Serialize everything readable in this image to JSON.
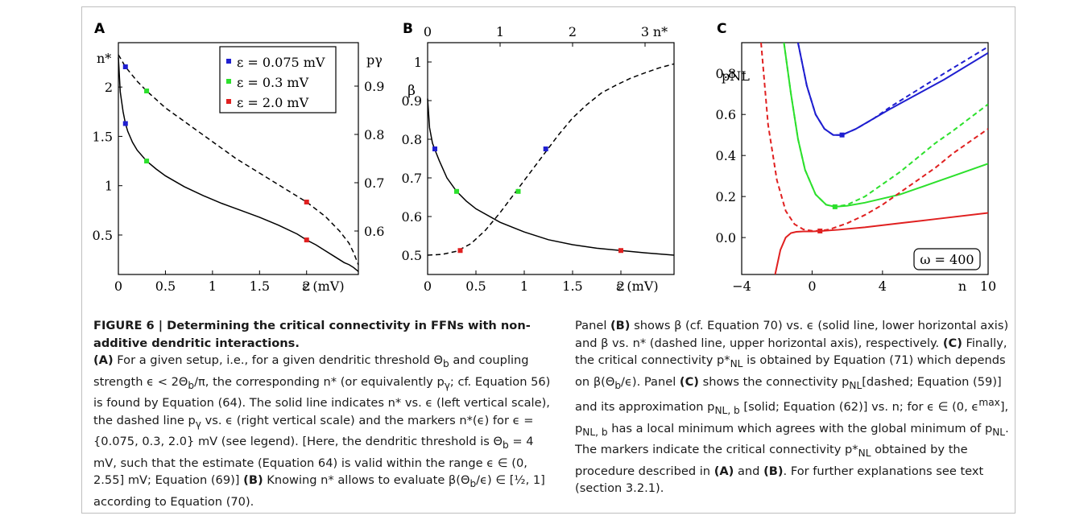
{
  "figure": {
    "panel_labels": [
      "A",
      "B",
      "C"
    ],
    "caption_title": "FIGURE 6 | Determining the critical connectivity in FFNs with non-additive dendritic interactions.",
    "caption_left_parts": [
      "(A)",
      " For a given setup, i.e., for a given dendritic threshold Θ",
      " and coupling strength ϵ < 2Θ",
      "/π, the corresponding n* (or equivalently p",
      "; cf. Equation 56) is found by Equation (64). The solid line indicates n* vs. ϵ (left vertical scale), the dashed line p",
      " vs. ϵ (right vertical scale) and the markers n*(ϵ) for ϵ = {0.075, 0.3, 2.0} mV (see legend). [Here, the dendritic threshold is Θ",
      " = 4 mV, such that the estimate (Equation 64) is valid within the range ϵ ∈ (0, 2.55] mV; Equation (69)] ",
      "(B)",
      " Knowing n* allows to evaluate β(Θ",
      "/ϵ) ∈ [½, 1] according to Equation (70)."
    ],
    "caption_right_parts": [
      "Panel ",
      "(B)",
      " shows β (cf. Equation 70) vs. ϵ (solid line, lower horizontal axis) and β vs. n* (dashed line, upper horizontal axis), respectively. ",
      "(C)",
      " Finally, the critical connectivity p*",
      " is obtained by Equation (71) which depends on β(Θ",
      "/ϵ). Panel ",
      "(C)",
      " shows the connectivity p",
      "[dashed; Equation (59)] and its approximation p",
      " [solid; Equation (62)] vs. n; for ϵ ∈ (0, ϵ",
      "], p",
      " has a local minimum which agrees with the global minimum of p",
      ". The markers indicate the critical connectivity p*",
      " obtained by the procedure described in ",
      "(A)",
      " and ",
      "(B)",
      ". For further explanations see text (section 3.2.1)."
    ],
    "subscripts": [
      "b",
      "γ",
      "NL",
      "NL, b",
      "max"
    ]
  },
  "chart_data": [
    {
      "panel": "A",
      "type": "line",
      "xlabel": "ε (mV)",
      "ylabel_left": "n*",
      "ylabel_right": "pγ",
      "xlim": [
        0,
        2.55
      ],
      "ylim_left": [
        0.1,
        2.45
      ],
      "ylim_right": [
        0.51,
        0.99
      ],
      "xticks": [
        "0",
        "0.5",
        "1",
        "1.5",
        "2"
      ],
      "yticks_left": [
        "0.5",
        "1",
        "1.5",
        "2"
      ],
      "yticks_right": [
        "0.6",
        "0.7",
        "0.8",
        "0.9"
      ],
      "legend": [
        "ε = 0.075 mV",
        "ε = 0.3 mV",
        "ε = 2.0 mV"
      ],
      "legend_position": "top-right",
      "series": [
        {
          "style": "solid",
          "axis": "left",
          "x": [
            0.0,
            0.02,
            0.05,
            0.075,
            0.1,
            0.15,
            0.2,
            0.3,
            0.4,
            0.5,
            0.7,
            0.9,
            1.1,
            1.3,
            1.5,
            1.7,
            1.9,
            2.0,
            2.1,
            2.2,
            2.3,
            2.4,
            2.45,
            2.5,
            2.55
          ],
          "y": [
            2.3,
            1.95,
            1.75,
            1.63,
            1.55,
            1.44,
            1.36,
            1.25,
            1.17,
            1.1,
            0.99,
            0.9,
            0.82,
            0.75,
            0.68,
            0.6,
            0.51,
            0.45,
            0.4,
            0.34,
            0.28,
            0.22,
            0.2,
            0.17,
            0.13
          ]
        },
        {
          "style": "dashed",
          "axis": "right",
          "x": [
            0.0,
            0.075,
            0.2,
            0.3,
            0.5,
            0.75,
            1.0,
            1.25,
            1.5,
            1.75,
            2.0,
            2.2,
            2.35,
            2.45,
            2.5,
            2.55
          ],
          "y": [
            0.965,
            0.94,
            0.91,
            0.89,
            0.855,
            0.82,
            0.785,
            0.75,
            0.72,
            0.69,
            0.66,
            0.63,
            0.6,
            0.575,
            0.555,
            0.53
          ]
        }
      ],
      "markers": [
        {
          "x": 0.075,
          "y_left": 1.63,
          "y_right": 0.94,
          "color": "#1f1fd0"
        },
        {
          "x": 0.3,
          "y_left": 1.25,
          "y_right": 0.89,
          "color": "#2ce02c"
        },
        {
          "x": 2.0,
          "y_left": 0.45,
          "y_right": 0.66,
          "color": "#e02020"
        }
      ]
    },
    {
      "panel": "B",
      "type": "line",
      "xlabel": "ε (mV)",
      "xlabel_top": "n*",
      "ylabel": "β",
      "xlim": [
        0,
        2.55
      ],
      "xlim_top": [
        0,
        3.4
      ],
      "ylim": [
        0.45,
        1.05
      ],
      "xticks": [
        "0",
        "0.5",
        "1",
        "1.5",
        "2"
      ],
      "xticks_top": [
        "0",
        "1",
        "2",
        "3"
      ],
      "yticks": [
        "0.5",
        "0.6",
        "0.7",
        "0.8",
        "0.9",
        "1"
      ],
      "series": [
        {
          "style": "solid",
          "axis": "bottom",
          "x": [
            0.0,
            0.02,
            0.05,
            0.08,
            0.12,
            0.2,
            0.3,
            0.4,
            0.5,
            0.75,
            1.0,
            1.25,
            1.5,
            1.75,
            2.0,
            2.25,
            2.55
          ],
          "y": [
            0.905,
            0.83,
            0.79,
            0.77,
            0.745,
            0.7,
            0.665,
            0.64,
            0.62,
            0.585,
            0.56,
            0.54,
            0.527,
            0.518,
            0.512,
            0.506,
            0.5
          ]
        },
        {
          "style": "dashed",
          "axis": "top",
          "x": [
            0.0,
            0.2,
            0.4,
            0.6,
            0.8,
            1.0,
            1.2,
            1.4,
            1.6,
            1.8,
            2.0,
            2.2,
            2.4,
            2.6,
            2.8,
            3.0,
            3.2,
            3.4
          ],
          "y": [
            0.5,
            0.502,
            0.51,
            0.53,
            0.565,
            0.61,
            0.66,
            0.71,
            0.76,
            0.81,
            0.855,
            0.89,
            0.92,
            0.94,
            0.958,
            0.972,
            0.985,
            0.995
          ]
        }
      ],
      "markers": [
        {
          "x": 0.075,
          "y": 0.775,
          "color": "#1f1fd0",
          "axis": "bottom"
        },
        {
          "x": 0.3,
          "y": 0.665,
          "color": "#2ce02c",
          "axis": "bottom"
        },
        {
          "x": 2.0,
          "y": 0.512,
          "color": "#e02020",
          "axis": "bottom"
        },
        {
          "x": 1.63,
          "y": 0.775,
          "color": "#1f1fd0",
          "axis": "top"
        },
        {
          "x": 1.25,
          "y": 0.665,
          "color": "#2ce02c",
          "axis": "top"
        },
        {
          "x": 0.45,
          "y": 0.512,
          "color": "#e02020",
          "axis": "top"
        }
      ]
    },
    {
      "panel": "C",
      "type": "line",
      "xlabel": "n",
      "ylabel": "pNL",
      "xlim": [
        -4,
        10
      ],
      "ylim": [
        -0.18,
        0.95
      ],
      "xticks": [
        "−4",
        "0",
        "4",
        "n",
        "10"
      ],
      "yticks": [
        "0.0",
        "0.2",
        "0.4",
        "0.6",
        "0.8"
      ],
      "annotation": "ω = 400",
      "series": [
        {
          "style": "solid",
          "color": "#1f1fd0",
          "x": [
            -0.8,
            -0.3,
            0.2,
            0.7,
            1.2,
            1.7,
            2.5,
            3.5,
            4.5,
            6,
            7.5,
            10
          ],
          "y": [
            0.95,
            0.74,
            0.6,
            0.53,
            0.5,
            0.5,
            0.53,
            0.58,
            0.63,
            0.7,
            0.77,
            0.9
          ]
        },
        {
          "style": "dashed",
          "color": "#1f1fd0",
          "x": [
            -0.8,
            -0.3,
            0.2,
            0.7,
            1.2,
            1.7,
            2.5,
            3.5,
            4.5,
            6,
            7.5,
            10
          ],
          "y": [
            0.95,
            0.74,
            0.6,
            0.53,
            0.5,
            0.5,
            0.53,
            0.58,
            0.64,
            0.72,
            0.8,
            0.93
          ]
        },
        {
          "style": "solid",
          "color": "#2ce02c",
          "x": [
            -1.6,
            -1.2,
            -0.8,
            -0.4,
            0.2,
            0.8,
            1.3,
            2,
            3,
            4,
            5,
            6,
            7,
            8,
            10
          ],
          "y": [
            0.95,
            0.7,
            0.48,
            0.33,
            0.21,
            0.16,
            0.15,
            0.155,
            0.17,
            0.19,
            0.21,
            0.24,
            0.27,
            0.3,
            0.36
          ]
        },
        {
          "style": "dashed",
          "color": "#2ce02c",
          "x": [
            -1.6,
            -1.2,
            -0.8,
            -0.4,
            0.2,
            0.8,
            1.3,
            2,
            3,
            4,
            5,
            6,
            7,
            8,
            10
          ],
          "y": [
            0.95,
            0.7,
            0.48,
            0.33,
            0.21,
            0.16,
            0.15,
            0.16,
            0.2,
            0.26,
            0.32,
            0.39,
            0.46,
            0.52,
            0.65
          ]
        },
        {
          "style": "solid",
          "color": "#e02020",
          "x": [
            -2.1,
            -1.8,
            -1.5,
            -1.2,
            -0.9,
            -0.5,
            0,
            0.5,
            1.5,
            3,
            5,
            7,
            10
          ],
          "y": [
            -0.18,
            -0.06,
            0.0,
            0.022,
            0.028,
            0.03,
            0.03,
            0.032,
            0.038,
            0.05,
            0.07,
            0.09,
            0.12
          ]
        },
        {
          "style": "dashed",
          "color": "#e02020",
          "x": [
            -2.9,
            -2.5,
            -2,
            -1.5,
            -1,
            -0.5,
            0,
            0.5,
            1,
            2,
            3,
            4,
            5,
            6,
            7,
            8,
            10
          ],
          "y": [
            0.95,
            0.55,
            0.28,
            0.13,
            0.065,
            0.04,
            0.033,
            0.033,
            0.04,
            0.07,
            0.11,
            0.16,
            0.22,
            0.28,
            0.34,
            0.41,
            0.53
          ]
        }
      ],
      "markers": [
        {
          "x": 1.7,
          "y": 0.5,
          "color": "#1f1fd0"
        },
        {
          "x": 1.3,
          "y": 0.15,
          "color": "#2ce02c"
        },
        {
          "x": 0.45,
          "y": 0.032,
          "color": "#e02020"
        }
      ]
    }
  ]
}
